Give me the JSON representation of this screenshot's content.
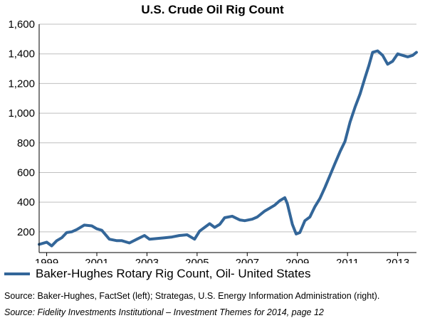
{
  "chart_data": {
    "type": "line",
    "title": "U.S. Crude Oil Rig Count",
    "xlabel": "",
    "ylabel": "",
    "xlim": [
      1998.7,
      2013.75
    ],
    "ylim": [
      60,
      1600
    ],
    "yticks": [
      200,
      400,
      600,
      800,
      1000,
      1200,
      1400,
      1600
    ],
    "ytick_labels": [
      "200",
      "400",
      "600",
      "800",
      "1,000",
      "1,200",
      "1,400",
      "1,600"
    ],
    "xticks": [
      1999,
      2001,
      2003,
      2005,
      2007,
      2009,
      2011,
      2013
    ],
    "xtick_labels": [
      "1999",
      "2001",
      "2003",
      "2005",
      "2007",
      "2009",
      "2011",
      "2013"
    ],
    "grid": true,
    "legend_position": "bottom-left",
    "series": [
      {
        "name": "Baker-Hughes Rotary Rig Count, Oil- United States",
        "color": "#336699",
        "x": [
          1998.7,
          1999.0,
          1999.2,
          1999.4,
          1999.6,
          1999.8,
          2000.0,
          2000.2,
          2000.5,
          2000.8,
          2001.0,
          2001.2,
          2001.5,
          2001.8,
          2002.0,
          2002.3,
          2002.6,
          2002.9,
          2003.1,
          2003.4,
          2003.7,
          2004.0,
          2004.3,
          2004.6,
          2004.9,
          2005.1,
          2005.3,
          2005.5,
          2005.7,
          2005.9,
          2006.1,
          2006.4,
          2006.7,
          2006.9,
          2007.2,
          2007.4,
          2007.7,
          2007.9,
          2008.1,
          2008.3,
          2008.5,
          2008.6,
          2008.8,
          2008.95,
          2009.1,
          2009.3,
          2009.5,
          2009.7,
          2009.9,
          2010.1,
          2010.3,
          2010.5,
          2010.7,
          2010.9,
          2011.1,
          2011.3,
          2011.5,
          2011.7,
          2011.85,
          2012.0,
          2012.2,
          2012.4,
          2012.6,
          2012.8,
          2013.0,
          2013.2,
          2013.4,
          2013.6,
          2013.75
        ],
        "values": [
          115,
          130,
          105,
          140,
          160,
          195,
          200,
          215,
          245,
          240,
          220,
          210,
          150,
          140,
          140,
          125,
          150,
          175,
          150,
          155,
          160,
          165,
          175,
          180,
          150,
          205,
          230,
          255,
          230,
          250,
          295,
          305,
          280,
          275,
          285,
          300,
          340,
          360,
          380,
          410,
          430,
          390,
          250,
          185,
          195,
          275,
          300,
          370,
          425,
          500,
          580,
          660,
          740,
          810,
          940,
          1040,
          1130,
          1240,
          1320,
          1410,
          1420,
          1390,
          1330,
          1350,
          1400,
          1390,
          1380,
          1390,
          1410
        ]
      }
    ]
  },
  "legend": {
    "label": "Baker-Hughes Rotary Rig Count, Oil- United States"
  },
  "sources": {
    "line1": "Source: Baker-Hughes, FactSet (left); Strategas, U.S. Energy Information Administration (right).",
    "line2": "Source: Fidelity Investments Institutional – Investment Themes for 2014, page 12"
  }
}
